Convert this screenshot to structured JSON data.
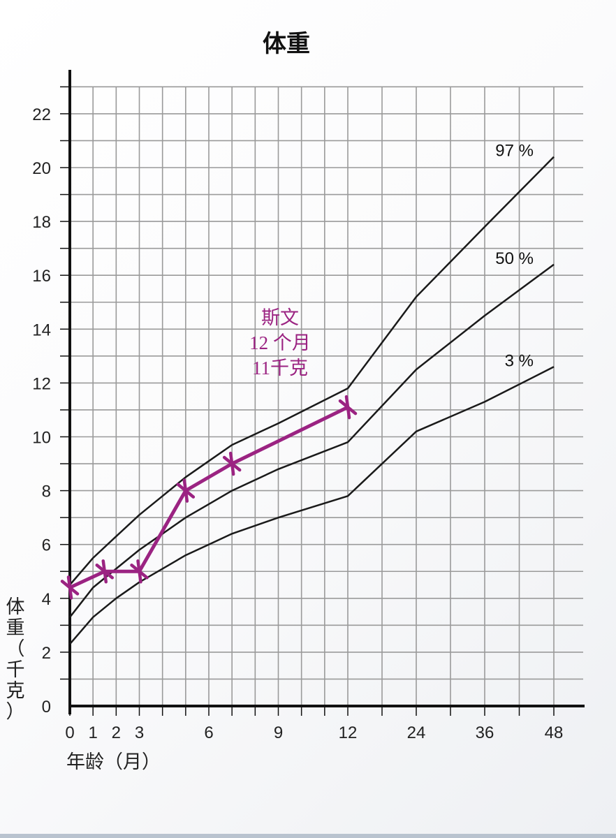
{
  "chart_data": {
    "type": "line",
    "title": "体重",
    "xlabel": "年龄（月）",
    "ylabel": "体重（千克）",
    "ylim": [
      0,
      23
    ],
    "x_ticks": [
      {
        "value": 0,
        "label": "0"
      },
      {
        "value": 1,
        "label": "1"
      },
      {
        "value": 2,
        "label": "2"
      },
      {
        "value": 3,
        "label": "3"
      },
      {
        "value": 6,
        "label": "6"
      },
      {
        "value": 9,
        "label": "9"
      },
      {
        "value": 12,
        "label": "12"
      },
      {
        "value": 24,
        "label": "24"
      },
      {
        "value": 36,
        "label": "36"
      },
      {
        "value": 48,
        "label": "48"
      }
    ],
    "y_ticks": [
      "0",
      "2",
      "4",
      "6",
      "8",
      "10",
      "12",
      "14",
      "16",
      "18",
      "20",
      "22"
    ],
    "grid": true,
    "series": [
      {
        "name": "97 %",
        "color": "#1a1a1a",
        "points": [
          [
            0,
            4.5
          ],
          [
            1,
            5.5
          ],
          [
            2,
            6.3
          ],
          [
            3,
            7.1
          ],
          [
            4,
            7.8
          ],
          [
            5,
            8.5
          ],
          [
            6,
            9.1
          ],
          [
            7,
            9.7
          ],
          [
            9,
            10.5
          ],
          [
            12,
            11.8
          ],
          [
            24,
            15.2
          ],
          [
            36,
            17.8
          ],
          [
            48,
            20.4
          ]
        ]
      },
      {
        "name": "50 %",
        "color": "#1a1a1a",
        "points": [
          [
            0,
            3.3
          ],
          [
            1,
            4.4
          ],
          [
            2,
            5.1
          ],
          [
            3,
            5.8
          ],
          [
            4,
            6.4
          ],
          [
            5,
            7.0
          ],
          [
            6,
            7.5
          ],
          [
            7,
            8.0
          ],
          [
            9,
            8.8
          ],
          [
            12,
            9.8
          ],
          [
            24,
            12.5
          ],
          [
            36,
            14.5
          ],
          [
            48,
            16.4
          ]
        ]
      },
      {
        "name": "3 %",
        "color": "#1a1a1a",
        "points": [
          [
            0,
            2.3
          ],
          [
            1,
            3.3
          ],
          [
            2,
            4.0
          ],
          [
            3,
            4.6
          ],
          [
            4,
            5.1
          ],
          [
            5,
            5.6
          ],
          [
            6,
            6.0
          ],
          [
            7,
            6.4
          ],
          [
            9,
            7.0
          ],
          [
            12,
            7.8
          ],
          [
            24,
            10.2
          ],
          [
            36,
            11.3
          ],
          [
            48,
            12.6
          ]
        ]
      },
      {
        "color": "#9b2382",
        "markers": true,
        "points": [
          [
            0,
            4.4
          ],
          [
            1.5,
            5.0
          ],
          [
            3,
            5.0
          ],
          [
            5,
            8.0
          ],
          [
            7,
            9.0
          ],
          [
            12,
            11.1
          ]
        ]
      }
    ],
    "annotation": {
      "lines": [
        "斯文",
        "12 个月",
        "11千克"
      ],
      "color": "#9b2382"
    }
  }
}
